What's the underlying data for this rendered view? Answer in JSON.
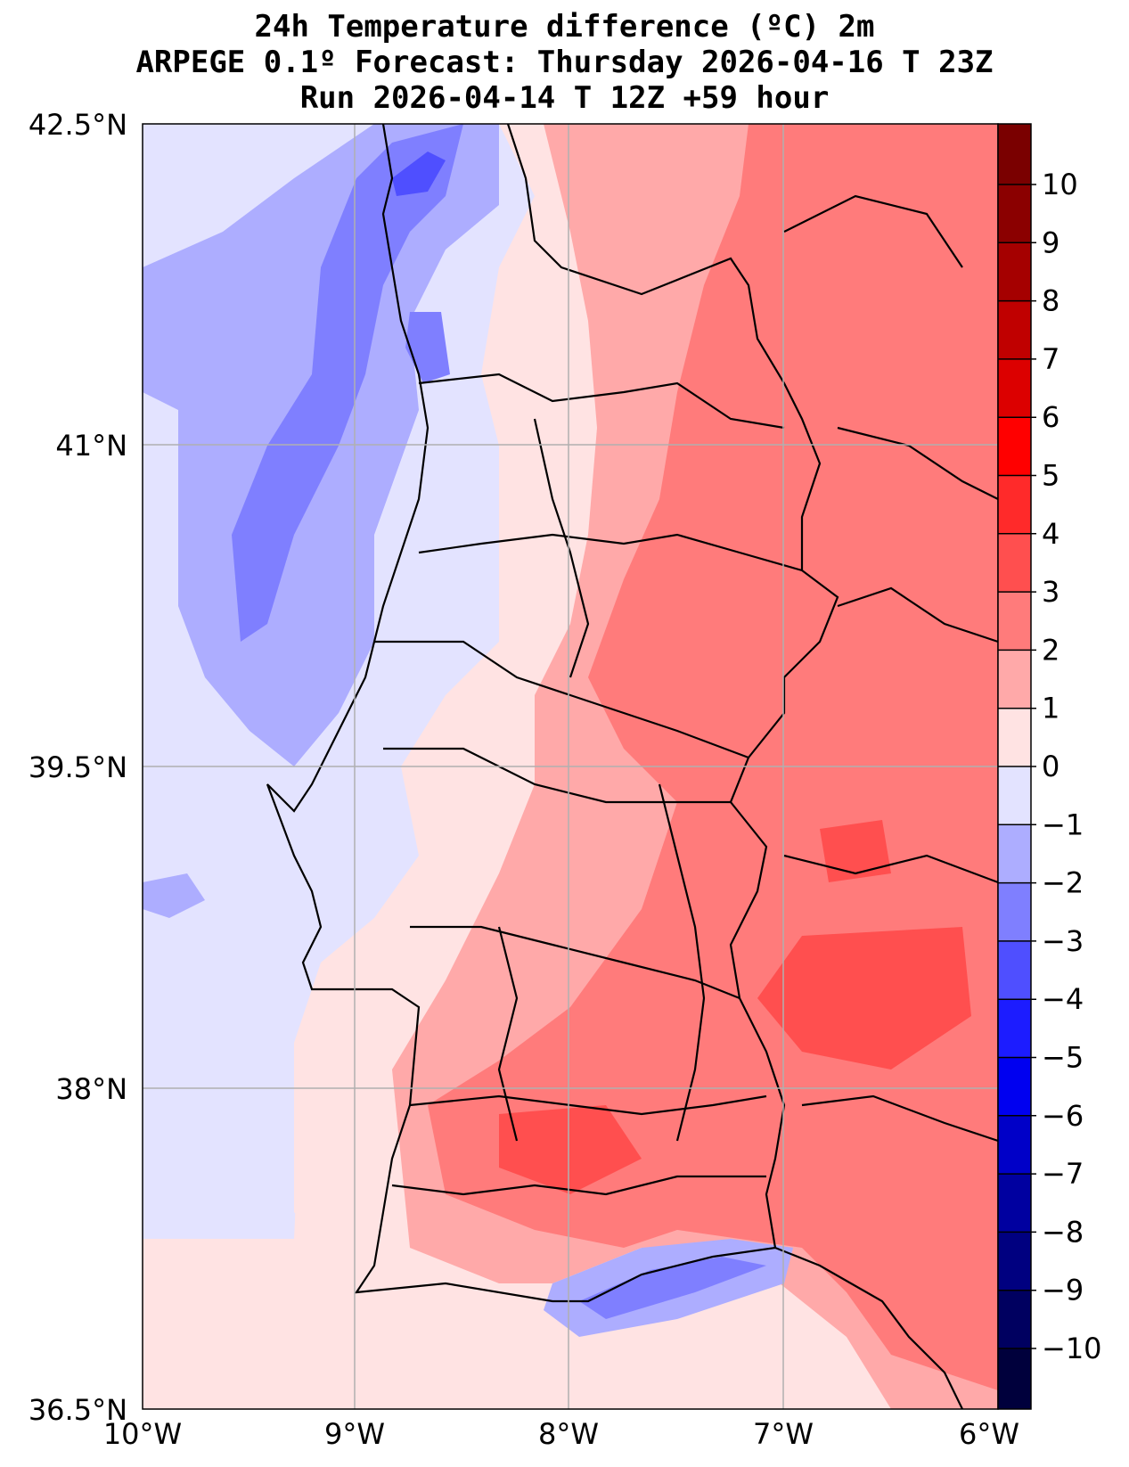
{
  "title": {
    "line1": "24h Temperature difference (ºC) 2m",
    "line2": "ARPEGE 0.1º Forecast: Thursday 2026-04-16 T 23Z",
    "line3": "Run 2026-04-14 T 12Z +59 hour"
  },
  "map": {
    "region": "Portugal mainland",
    "lon_range": [
      -10,
      -6
    ],
    "lat_range": [
      36.5,
      42.5
    ],
    "lat_ticks": [
      {
        "value": 42.5,
        "label": "42.5°N"
      },
      {
        "value": 41.0,
        "label": "41°N"
      },
      {
        "value": 39.5,
        "label": "39.5°N"
      },
      {
        "value": 38.0,
        "label": "38°N"
      },
      {
        "value": 36.5,
        "label": "36.5°N"
      }
    ],
    "lon_ticks": [
      {
        "value": -10,
        "label": "10°W"
      },
      {
        "value": -9,
        "label": "9°W"
      },
      {
        "value": -8,
        "label": "8°W"
      },
      {
        "value": -7,
        "label": "7°W"
      },
      {
        "value": -6,
        "label": "6°W"
      }
    ]
  },
  "colorbar": {
    "levels": [
      {
        "label": "10",
        "value": 10,
        "color": "#8b0000"
      },
      {
        "label": "9",
        "value": 9,
        "color": "#a50000"
      },
      {
        "label": "8",
        "value": 8,
        "color": "#c00000"
      },
      {
        "label": "7",
        "value": 7,
        "color": "#dc0000"
      },
      {
        "label": "6",
        "value": 6,
        "color": "#ff0000"
      },
      {
        "label": "5",
        "value": 5,
        "color": "#ff2a2a"
      },
      {
        "label": "4",
        "value": 4,
        "color": "#ff4f4f"
      },
      {
        "label": "3",
        "value": 3,
        "color": "#ff7b7b"
      },
      {
        "label": "2",
        "value": 2,
        "color": "#ffa9a9"
      },
      {
        "label": "1",
        "value": 1,
        "color": "#ffe3e3"
      },
      {
        "label": "0",
        "value": 0,
        "color": "#e3e3ff"
      },
      {
        "label": "−1",
        "value": -1,
        "color": "#adadff"
      },
      {
        "label": "−2",
        "value": -2,
        "color": "#7f7fff"
      },
      {
        "label": "−3",
        "value": -3,
        "color": "#4f4fff"
      },
      {
        "label": "−4",
        "value": -4,
        "color": "#1c1cff"
      },
      {
        "label": "−5",
        "value": -5,
        "color": "#0000f0"
      },
      {
        "label": "−6",
        "value": -6,
        "color": "#0000c8"
      },
      {
        "label": "−7",
        "value": -7,
        "color": "#0000a0"
      },
      {
        "label": "−8",
        "value": -8,
        "color": "#000080"
      },
      {
        "label": "−9",
        "value": -9,
        "color": "#000060"
      },
      {
        "label": "−10",
        "value": -10,
        "color": "#00003c"
      }
    ],
    "top_color": "#7a0000",
    "bottom_color": "#000030"
  },
  "fills": {
    "sea_light": "#e3e3ff",
    "cool_1": "#adadff",
    "cool_2": "#7f7fff",
    "cool_3": "#4f4fff",
    "warm_0": "#ffe3e3",
    "warm_1": "#ffa9a9",
    "warm_2": "#ff7b7b",
    "warm_3": "#ff4f4f"
  }
}
